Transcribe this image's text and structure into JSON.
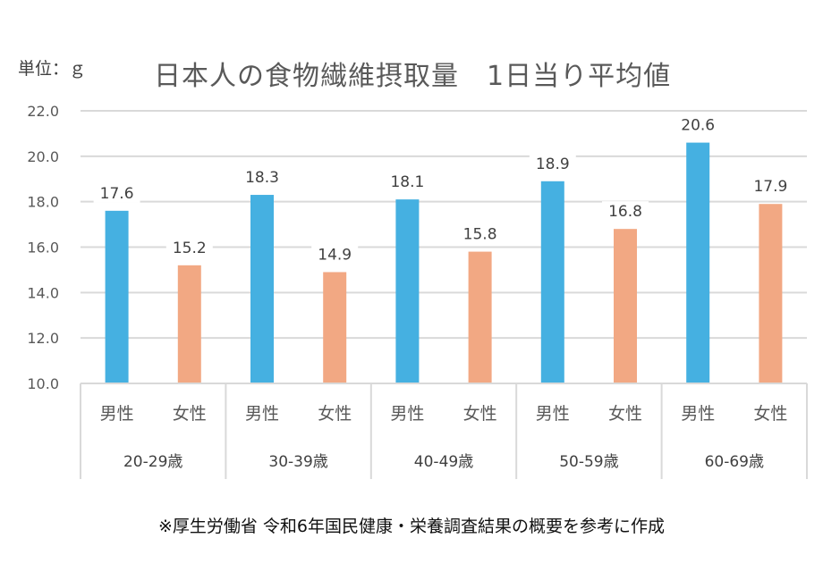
{
  "header": {
    "unit_label": "単位：ｇ",
    "title": "日本人の食物繊維摂取量　1日当り平均値"
  },
  "footer": {
    "source_note": "※厚生労働省 令和6年国民健康・栄養調査結果の概要を参考に作成"
  },
  "colors": {
    "male": "#45B0E1",
    "female": "#F2A883",
    "grid": "#D9D9D9",
    "axis_text": "#595959",
    "label_text": "#404040"
  },
  "chart_data": {
    "type": "bar",
    "title": "日本人の食物繊維摂取量　1日当り平均値",
    "ylabel": "単位：ｇ",
    "xlabel": "",
    "ylim": [
      10.0,
      22.0
    ],
    "yticks": [
      "10.0",
      "12.0",
      "14.0",
      "16.0",
      "18.0",
      "20.0",
      "22.0"
    ],
    "ytick_values": [
      10,
      12,
      14,
      16,
      18,
      20,
      22
    ],
    "grid": true,
    "legend": "none",
    "groups": [
      "20-29歳",
      "30-39歳",
      "40-49歳",
      "50-59歳",
      "60-69歳"
    ],
    "subcategories": [
      "男性",
      "女性"
    ],
    "series": [
      {
        "name": "男性",
        "values": [
          17.6,
          18.3,
          18.1,
          18.9,
          20.6
        ]
      },
      {
        "name": "女性",
        "values": [
          15.2,
          14.9,
          15.8,
          16.8,
          17.9
        ]
      }
    ],
    "data_labels": true
  }
}
